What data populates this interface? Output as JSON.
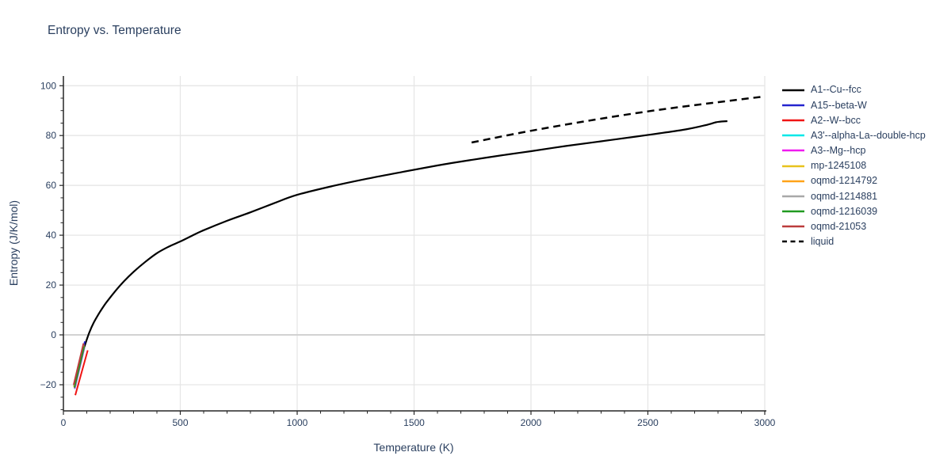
{
  "title": "Entropy vs. Temperature",
  "chart_data": {
    "type": "line",
    "title": "Entropy vs. Temperature",
    "xlabel": "Temperature (K)",
    "ylabel": "Entropy (J/K/mol)",
    "xlim": [
      0,
      3000
    ],
    "ylim": [
      -30.5,
      103.9
    ],
    "x_ticks": [
      0,
      500,
      1000,
      1500,
      2000,
      2500,
      3000
    ],
    "y_ticks": [
      -20,
      0,
      20,
      40,
      60,
      80,
      100
    ],
    "x_minor_step": 100,
    "y_minor_step": 5,
    "grid": true,
    "legend_position": "top-right",
    "colors": {
      "text": "#2a3f5f",
      "grid": "#e6e6e6",
      "zeroline": "#d2d2d2",
      "axis": "#262626",
      "background": "#ffffff"
    },
    "series": [
      {
        "name": "A1--Cu--fcc",
        "color": "#000000",
        "dash": "solid",
        "width": 2.2,
        "smooth": true,
        "points": [
          [
            50,
            -20.8
          ],
          [
            58,
            -16.5
          ],
          [
            68,
            -12.0
          ],
          [
            80,
            -7.8
          ],
          [
            95,
            -3.3
          ],
          [
            110,
            0.8
          ],
          [
            130,
            5.0
          ],
          [
            150,
            8.3
          ],
          [
            175,
            11.9
          ],
          [
            200,
            15.0
          ],
          [
            230,
            18.5
          ],
          [
            260,
            21.6
          ],
          [
            300,
            25.3
          ],
          [
            350,
            29.3
          ],
          [
            400,
            32.8
          ],
          [
            450,
            35.4
          ],
          [
            500,
            37.5
          ],
          [
            550,
            39.8
          ],
          [
            600,
            42.0
          ],
          [
            700,
            45.8
          ],
          [
            800,
            49.2
          ],
          [
            900,
            52.8
          ],
          [
            1000,
            56.2
          ],
          [
            1150,
            59.7
          ],
          [
            1300,
            62.7
          ],
          [
            1450,
            65.4
          ],
          [
            1600,
            68.0
          ],
          [
            1750,
            70.3
          ],
          [
            1900,
            72.4
          ],
          [
            2000,
            73.7
          ],
          [
            2150,
            75.8
          ],
          [
            2300,
            77.7
          ],
          [
            2450,
            79.6
          ],
          [
            2550,
            80.9
          ],
          [
            2650,
            82.3
          ],
          [
            2720,
            83.6
          ],
          [
            2760,
            84.5
          ],
          [
            2790,
            85.3
          ],
          [
            2810,
            85.6
          ],
          [
            2840,
            85.8
          ]
        ]
      },
      {
        "name": "A15--beta-W",
        "color": "#2424cf",
        "dash": "solid",
        "width": 2,
        "smooth": false,
        "points": [
          [
            45,
            -20.6
          ],
          [
            92,
            -2.6
          ]
        ]
      },
      {
        "name": "A2--W--bcc",
        "color": "#f01414",
        "dash": "solid",
        "width": 2,
        "smooth": false,
        "points": [
          [
            51,
            -24.2
          ],
          [
            104,
            -6.2
          ]
        ]
      },
      {
        "name": "A3'--alpha-La--double-hcp",
        "color": "#00e8e8",
        "dash": "solid",
        "width": 2,
        "smooth": false,
        "points": [
          [
            48.5,
            -21.7
          ],
          [
            90.5,
            -5.0
          ]
        ]
      },
      {
        "name": "A3--Mg--hcp",
        "color": "#ef1bef",
        "dash": "solid",
        "width": 2,
        "smooth": false,
        "points": [
          [
            48,
            -21.5
          ],
          [
            90,
            -4.8
          ]
        ]
      },
      {
        "name": "mp-1245108",
        "color": "#e8c21d",
        "dash": "solid",
        "width": 2,
        "smooth": false,
        "points": [
          [
            46,
            -21.0
          ],
          [
            88,
            -4.4
          ]
        ]
      },
      {
        "name": "oqmd-1214792",
        "color": "#ffa318",
        "dash": "solid",
        "width": 2,
        "smooth": false,
        "points": [
          [
            45,
            -20.6
          ],
          [
            87,
            -4.0
          ]
        ]
      },
      {
        "name": "oqmd-1214881",
        "color": "#a8a8a8",
        "dash": "solid",
        "width": 2,
        "smooth": false,
        "points": [
          [
            44.5,
            -20.3
          ],
          [
            86.5,
            -3.7
          ]
        ]
      },
      {
        "name": "oqmd-1216039",
        "color": "#219a21",
        "dash": "solid",
        "width": 2,
        "smooth": false,
        "points": [
          [
            47,
            -21.2
          ],
          [
            89,
            -4.6
          ]
        ]
      },
      {
        "name": "oqmd-21053",
        "color": "#bc3c3c",
        "dash": "solid",
        "width": 2,
        "smooth": false,
        "points": [
          [
            44,
            -20.0
          ],
          [
            86,
            -3.4
          ]
        ]
      },
      {
        "name": "liquid",
        "color": "#000000",
        "dash": "dash",
        "width": 2.5,
        "smooth": true,
        "points": [
          [
            1746,
            77.2
          ],
          [
            2000,
            81.9
          ],
          [
            2250,
            86.0
          ],
          [
            2500,
            89.7
          ],
          [
            2750,
            92.8
          ],
          [
            3000,
            95.7
          ]
        ]
      }
    ]
  }
}
